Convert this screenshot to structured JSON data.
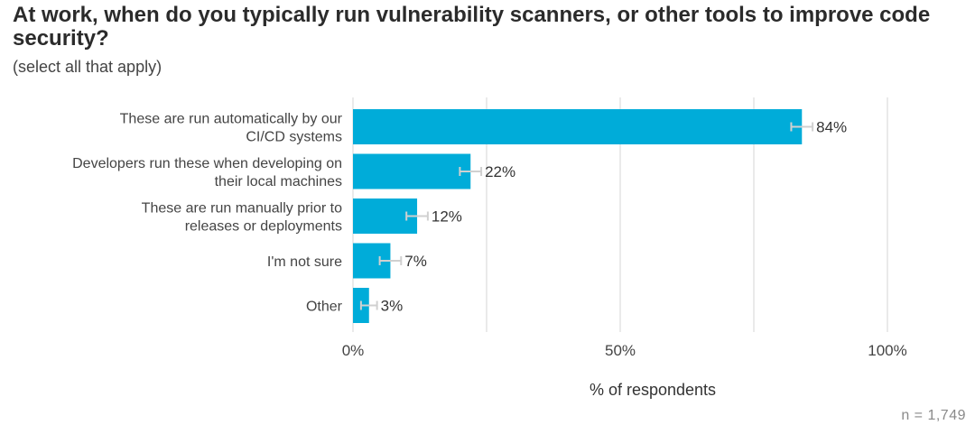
{
  "title": "At work, when do you typically run vulnerability scanners, or other tools to improve code security?",
  "subtitle": "(select all that apply)",
  "note": "n =  1,749",
  "colors": {
    "bar": "#00acd9",
    "grid": "#e3e3e3",
    "errorbar": "#d0d0d0"
  },
  "chart_data": {
    "type": "bar",
    "orientation": "horizontal",
    "categories": [
      [
        "These are run automatically by our",
        "CI/CD systems"
      ],
      [
        "Developers run these when developing on",
        "their local machines"
      ],
      [
        "These are run manually prior to",
        "releases or deployments"
      ],
      [
        "I'm not sure"
      ],
      [
        "Other"
      ]
    ],
    "values": [
      84,
      22,
      12,
      7,
      3
    ],
    "value_labels": [
      "84%",
      "22%",
      "12%",
      "7%",
      "3%"
    ],
    "error_margin": [
      2,
      2,
      2,
      2,
      1.5
    ],
    "xlim": [
      0,
      100
    ],
    "xticks": [
      0,
      50,
      100
    ],
    "xtick_labels": [
      "0%",
      "50%",
      "100%"
    ],
    "xlabel": "% of respondents",
    "grid": true
  }
}
